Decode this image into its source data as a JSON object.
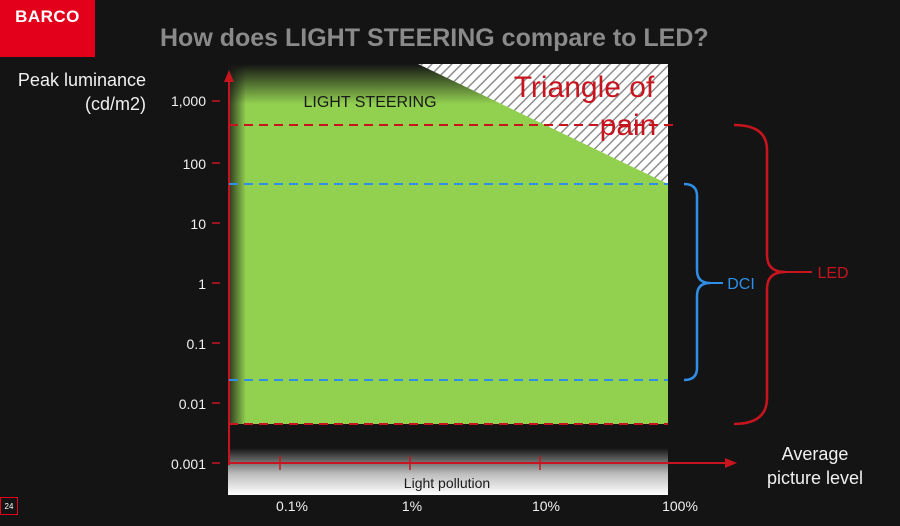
{
  "logo": {
    "text": "BARCO"
  },
  "slide": {
    "title": "How does LIGHT STEERING compare to LED?",
    "page_number": "24"
  },
  "axes": {
    "y_label_line1": "Peak luminance",
    "y_label_line2": "(cd/m2)",
    "x_label_line1": "Average",
    "x_label_line2": "picture level",
    "y_scale": "log",
    "y_ticks": [
      "1,000",
      "100",
      "10",
      "1",
      "0.1",
      "0.01",
      "0.001"
    ],
    "x_ticks": [
      "0.1%",
      "1%",
      "10%",
      "100%"
    ]
  },
  "regions": {
    "light_steering": "LIGHT STEERING",
    "triangle_line1": "Triangle of",
    "triangle_line2": "pain",
    "light_pollution": "Light pollution"
  },
  "brackets": {
    "dci": "DCI",
    "led": "LED"
  },
  "colors": {
    "brand": "#e2001a",
    "light_steering_area": "#92d050",
    "dci": "#2f8fe8",
    "led": "#c8141e",
    "title": "#8a8a8a"
  }
}
